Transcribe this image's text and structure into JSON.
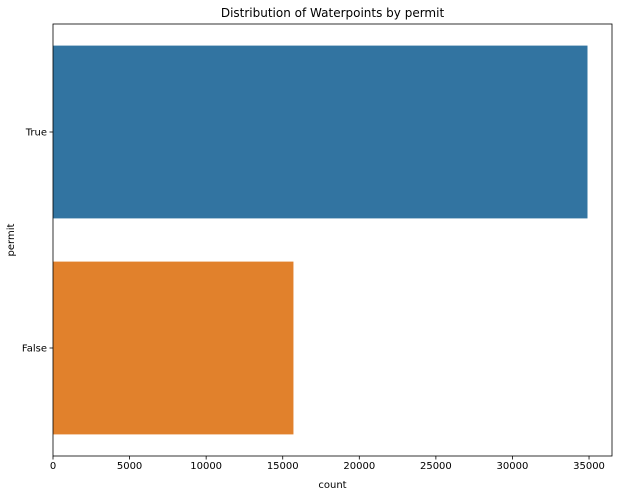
{
  "chart_data": {
    "type": "bar",
    "orientation": "horizontal",
    "title": "Distribution of Waterpoints by permit",
    "xlabel": "count",
    "ylabel": "permit",
    "categories": [
      "True",
      "False"
    ],
    "values": [
      34900,
      15700
    ],
    "colors": [
      "#3274a1",
      "#e1812c"
    ],
    "xlim": [
      0,
      36500
    ],
    "xticks": [
      0,
      5000,
      10000,
      15000,
      20000,
      25000,
      30000,
      35000
    ],
    "grid": false,
    "legend": "none"
  }
}
